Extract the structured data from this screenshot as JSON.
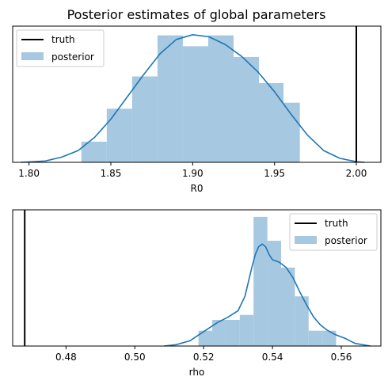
{
  "figure": {
    "title": "Posterior estimates of global parameters"
  },
  "chart_data": [
    {
      "type": "histogram",
      "xlabel": "R0",
      "ylabel": "",
      "xlim": [
        1.79,
        2.015
      ],
      "xticks": [
        "1.80",
        "1.85",
        "1.90",
        "1.95",
        "2.00"
      ],
      "xtick_values": [
        1.8,
        1.85,
        1.9,
        1.95,
        2.0
      ],
      "truth": 2.0,
      "legend": {
        "position": "top-left",
        "entries": [
          "truth",
          "posterior"
        ]
      },
      "hist_ymax": 1.0,
      "bins": [
        {
          "x0": 1.832,
          "x1": 1.8475,
          "height": 0.158
        },
        {
          "x0": 1.8475,
          "x1": 1.863,
          "height": 0.41
        },
        {
          "x0": 1.863,
          "x1": 1.8785,
          "height": 0.657
        },
        {
          "x0": 1.8785,
          "x1": 1.894,
          "height": 0.971
        },
        {
          "x0": 1.894,
          "x1": 1.9095,
          "height": 0.888
        },
        {
          "x0": 1.9095,
          "x1": 1.925,
          "height": 0.971
        },
        {
          "x0": 1.925,
          "x1": 1.9405,
          "height": 0.806
        },
        {
          "x0": 1.9405,
          "x1": 1.9555,
          "height": 0.606
        },
        {
          "x0": 1.9555,
          "x1": 1.9655,
          "height": 0.456
        }
      ],
      "kde": {
        "x": [
          1.795,
          1.81,
          1.82,
          1.83,
          1.84,
          1.85,
          1.86,
          1.87,
          1.88,
          1.89,
          1.9,
          1.91,
          1.92,
          1.93,
          1.94,
          1.95,
          1.96,
          1.97,
          1.98,
          1.99,
          2.0,
          2.005
        ],
        "y": [
          0.0,
          0.01,
          0.04,
          0.09,
          0.19,
          0.33,
          0.5,
          0.67,
          0.83,
          0.94,
          0.976,
          0.96,
          0.9,
          0.81,
          0.69,
          0.54,
          0.37,
          0.21,
          0.09,
          0.03,
          0.005,
          0.0
        ]
      }
    },
    {
      "type": "histogram",
      "xlabel": "rho",
      "ylabel": "",
      "xlim": [
        0.4645,
        0.5715
      ],
      "xticks": [
        "0.48",
        "0.50",
        "0.52",
        "0.54",
        "0.56"
      ],
      "xtick_values": [
        0.48,
        0.5,
        0.52,
        0.54,
        0.56
      ],
      "truth": 0.468,
      "legend": {
        "position": "top-right",
        "entries": [
          "truth",
          "posterior"
        ]
      },
      "hist_ymax": 1.0,
      "bins": [
        {
          "x0": 0.5185,
          "x1": 0.5225,
          "height": 0.117
        },
        {
          "x0": 0.5225,
          "x1": 0.5265,
          "height": 0.2
        },
        {
          "x0": 0.5265,
          "x1": 0.5305,
          "height": 0.2
        },
        {
          "x0": 0.5305,
          "x1": 0.5345,
          "height": 0.238
        },
        {
          "x0": 0.5345,
          "x1": 0.5385,
          "height": 0.988
        },
        {
          "x0": 0.5385,
          "x1": 0.5425,
          "height": 0.805
        },
        {
          "x0": 0.5425,
          "x1": 0.5465,
          "height": 0.6
        },
        {
          "x0": 0.5465,
          "x1": 0.5505,
          "height": 0.38
        },
        {
          "x0": 0.5505,
          "x1": 0.5545,
          "height": 0.117
        },
        {
          "x0": 0.5545,
          "x1": 0.5585,
          "height": 0.117
        }
      ],
      "kde": {
        "x": [
          0.5085,
          0.512,
          0.516,
          0.52,
          0.524,
          0.527,
          0.53,
          0.532,
          0.534,
          0.535,
          0.536,
          0.537,
          0.538,
          0.539,
          0.54,
          0.542,
          0.544,
          0.546,
          0.548,
          0.55,
          0.552,
          0.554,
          0.556,
          0.558,
          0.561,
          0.564,
          0.5685
        ],
        "y": [
          0.0,
          0.01,
          0.04,
          0.11,
          0.18,
          0.22,
          0.27,
          0.38,
          0.6,
          0.7,
          0.76,
          0.78,
          0.76,
          0.7,
          0.66,
          0.64,
          0.6,
          0.52,
          0.41,
          0.31,
          0.22,
          0.16,
          0.12,
          0.09,
          0.06,
          0.02,
          0.0
        ]
      }
    }
  ],
  "colors": {
    "hist": "#a6c8e0",
    "kde": "#1f77b4",
    "truth": "#000000"
  }
}
